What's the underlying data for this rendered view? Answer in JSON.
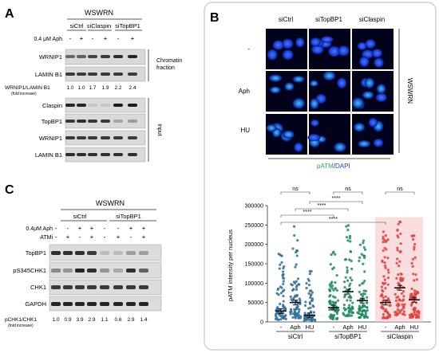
{
  "panel_a": {
    "letter": "A",
    "group": "WSWRN",
    "conditions": [
      "siCtrl",
      "siClaspin",
      "siTopBP1"
    ],
    "aph_label": "0.4 μM Aph",
    "aph_signs": [
      "-",
      "+",
      "-",
      "+",
      "-",
      "+"
    ],
    "fraction_label_1": "Chromatin",
    "fraction_label_2": "fraction",
    "input_label": "Input",
    "bands_top": [
      "WRNIP1",
      "LAMIN B1"
    ],
    "ratio_label": "WRNIP1/LAMIN B1",
    "ratio_sub": "(fold increase)",
    "ratio_values": [
      "1.0",
      "1.0",
      "1.7",
      "1.9",
      "2.2",
      "2.4"
    ],
    "bands_bottom": [
      "Claspin",
      "TopBP1",
      "WRNIP1",
      "LAMIN B1"
    ]
  },
  "panel_b": {
    "letter": "B",
    "columns": [
      "siCtrl",
      "siTopBP1",
      "siClaspin"
    ],
    "rows": [
      "-",
      "Aph",
      "HU"
    ],
    "group": "WSWRN",
    "stain_1": "pATM",
    "stain_sep": "/",
    "stain_2": "DAPI",
    "ylabel": "pATM intensity per nucleus",
    "yticks": [
      "0",
      "50000",
      "100000",
      "150000",
      "200000",
      "250000",
      "300000"
    ],
    "xticks": [
      "-",
      "Aph",
      "HU",
      "-",
      "Aph",
      "HU",
      "-",
      "Aph",
      "HU"
    ],
    "groups": [
      "siCtrl",
      "siTopBP1",
      "siClaspin"
    ],
    "sig": [
      "ns",
      "ns",
      "ns",
      "****",
      "****",
      "****",
      "****"
    ]
  },
  "panel_c": {
    "letter": "C",
    "group": "WSWRN",
    "conditions": [
      "siCtrl",
      "siTopBP1"
    ],
    "aph_label": "0.4μM Aph",
    "atmi_label": "ATMi",
    "aph_signs": [
      "-",
      "-",
      "+",
      "+",
      "-",
      "-",
      "+",
      "+"
    ],
    "atmi_signs": [
      "-",
      "+",
      "-",
      "+",
      "-",
      "+",
      "-",
      "+"
    ],
    "bands": [
      "TopBP1",
      "pS345CHK1",
      "CHK1",
      "GAPDH"
    ],
    "ratio_label": "pCHK1/CHK1",
    "ratio_sub": "(fold increase)",
    "ratio_values": [
      "1.0",
      "0.9",
      "3.9",
      "2.9",
      "1.1",
      "0.6",
      "2.9",
      "1.4"
    ]
  },
  "colors": {
    "ctrl": "#2f6f9a",
    "topbp1": "#1f8a5e",
    "claspin": "#e0403c",
    "claspin_bg": "#f7c6c9",
    "green_text": "#27a35a",
    "blue_text": "#1f3fbf",
    "nuclei_bg": "#02031a"
  },
  "chart_data": {
    "type": "scatter",
    "ylabel": "pATM intensity per nucleus",
    "ylim": [
      0,
      300000
    ],
    "categories": [
      "siCtrl -",
      "siCtrl Aph",
      "siCtrl HU",
      "siTopBP1 -",
      "siTopBP1 Aph",
      "siTopBP1 HU",
      "siClaspin -",
      "siClaspin Aph",
      "siClaspin HU"
    ],
    "means": [
      28000,
      50000,
      17000,
      37000,
      78000,
      55000,
      50000,
      88000,
      57000
    ],
    "max_values": [
      185000,
      255000,
      140000,
      190000,
      255000,
      245000,
      240000,
      265000,
      225000
    ]
  }
}
